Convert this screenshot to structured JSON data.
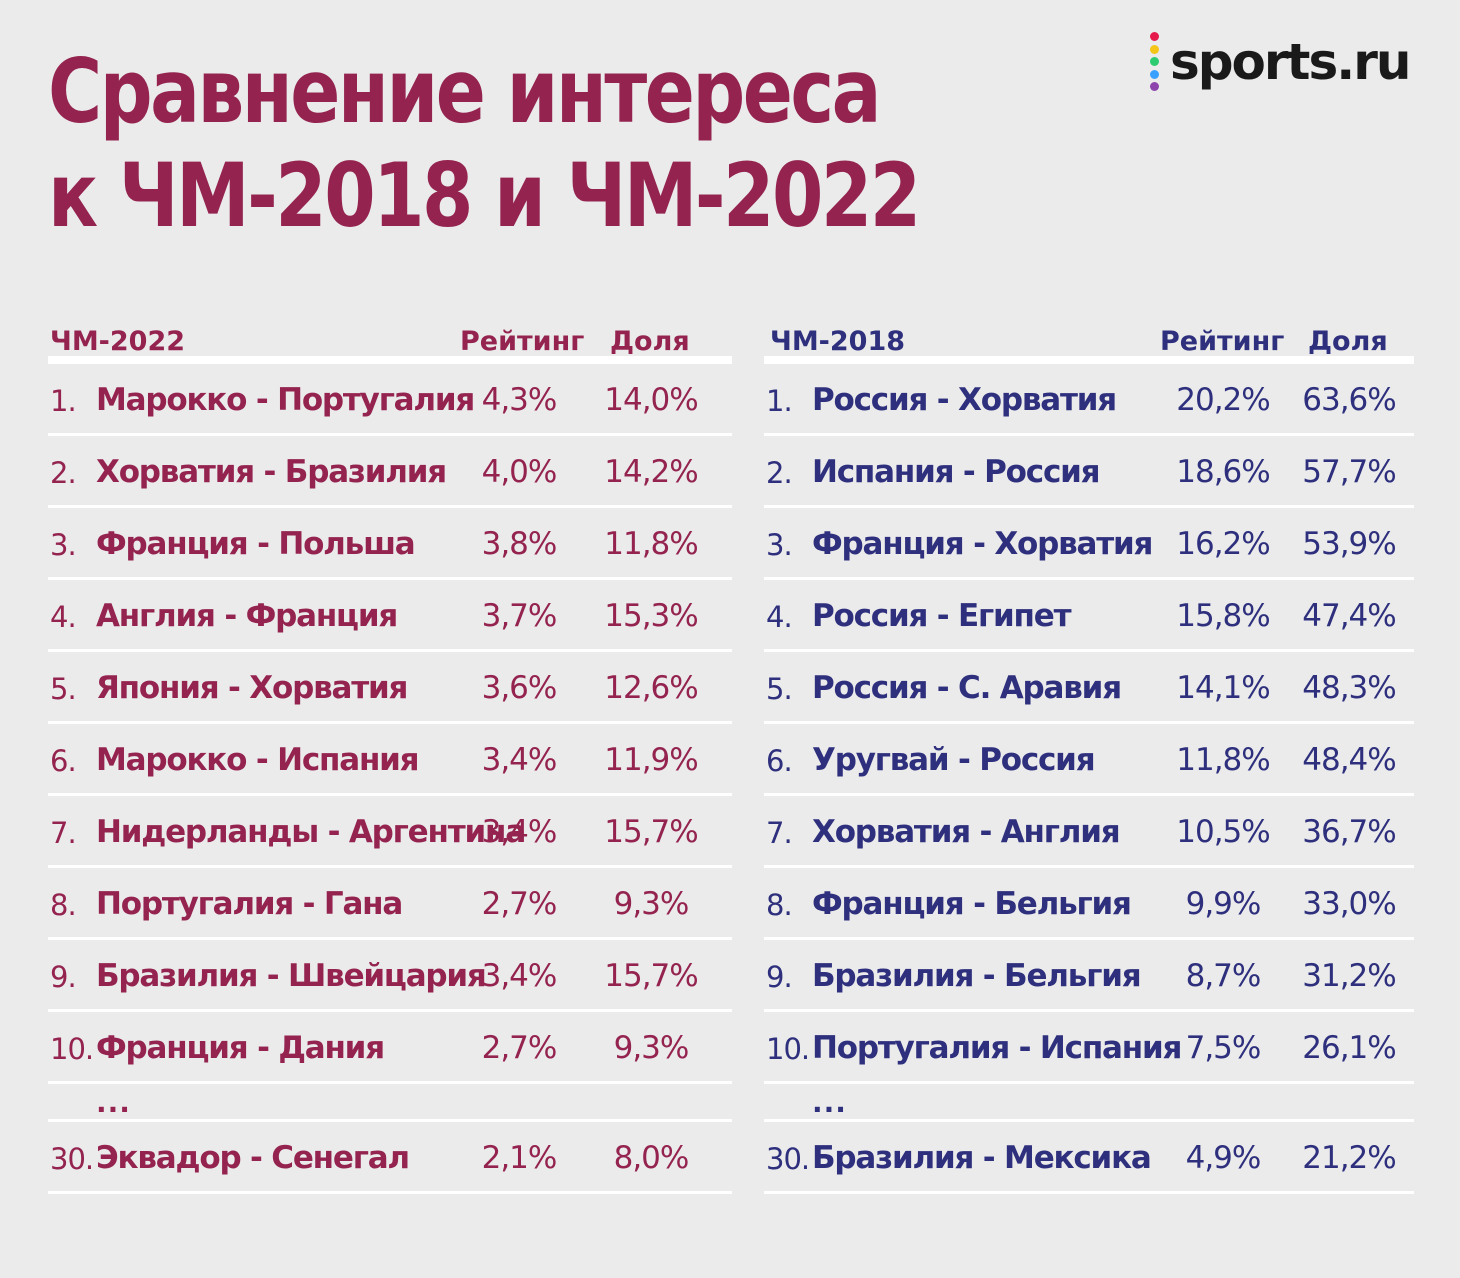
{
  "title_line1": "Сравнение интереса",
  "title_line2": "к ЧМ-2018 и ЧМ-2022",
  "logo": {
    "text": "sports.ru",
    "dot_colors": [
      "#e6194b",
      "#f5c518",
      "#2ecc71",
      "#3aa0ff",
      "#8e44ad"
    ]
  },
  "colors": {
    "wc2022": "#94244f",
    "wc2018": "#2e2f7d",
    "background": "#ebebeb",
    "divider": "#ffffff"
  },
  "ellipsis": "...",
  "chart_data": {
    "type": "table",
    "tables": [
      {
        "title": "ЧМ-2022",
        "columns": [
          "Рейтинг",
          "Доля"
        ],
        "rows": [
          {
            "rank": "1.",
            "match": "Марокко - Португалия",
            "rating": "4,3%",
            "share": "14,0%"
          },
          {
            "rank": "2.",
            "match": "Хорватия - Бразилия",
            "rating": "4,0%",
            "share": "14,2%"
          },
          {
            "rank": "3.",
            "match": "Франция - Польша",
            "rating": "3,8%",
            "share": "11,8%"
          },
          {
            "rank": "4.",
            "match": "Англия - Франция",
            "rating": "3,7%",
            "share": "15,3%"
          },
          {
            "rank": "5.",
            "match": "Япония - Хорватия",
            "rating": "3,6%",
            "share": "12,6%"
          },
          {
            "rank": "6.",
            "match": "Марокко - Испания",
            "rating": "3,4%",
            "share": "11,9%"
          },
          {
            "rank": "7.",
            "match": "Нидерланды - Аргентина",
            "rating": "3,4%",
            "share": "15,7%"
          },
          {
            "rank": "8.",
            "match": "Португалия - Гана",
            "rating": "2,7%",
            "share": "9,3%"
          },
          {
            "rank": "9.",
            "match": "Бразилия - Швейцария",
            "rating": "3,4%",
            "share": "15,7%"
          },
          {
            "rank": "10.",
            "match": "Франция - Дания",
            "rating": "2,7%",
            "share": "9,3%"
          }
        ],
        "last_row": {
          "rank": "30.",
          "match": "Эквадор - Сенегал",
          "rating": "2,1%",
          "share": "8,0%"
        }
      },
      {
        "title": "ЧМ-2018",
        "columns": [
          "Рейтинг",
          "Доля"
        ],
        "rows": [
          {
            "rank": "1.",
            "match": "Россия - Хорватия",
            "rating": "20,2%",
            "share": "63,6%"
          },
          {
            "rank": "2.",
            "match": "Испания - Россия",
            "rating": "18,6%",
            "share": "57,7%"
          },
          {
            "rank": "3.",
            "match": "Франция - Хорватия",
            "rating": "16,2%",
            "share": "53,9%"
          },
          {
            "rank": "4.",
            "match": "Россия - Египет",
            "rating": "15,8%",
            "share": "47,4%"
          },
          {
            "rank": "5.",
            "match": "Россия - С. Аравия",
            "rating": "14,1%",
            "share": "48,3%"
          },
          {
            "rank": "6.",
            "match": "Уругвай - Россия",
            "rating": "11,8%",
            "share": "48,4%"
          },
          {
            "rank": "7.",
            "match": "Хорватия - Англия",
            "rating": "10,5%",
            "share": "36,7%"
          },
          {
            "rank": "8.",
            "match": "Франция - Бельгия",
            "rating": "9,9%",
            "share": "33,0%"
          },
          {
            "rank": "9.",
            "match": "Бразилия - Бельгия",
            "rating": "8,7%",
            "share": "31,2%"
          },
          {
            "rank": "10.",
            "match": "Португалия - Испания",
            "rating": "7,5%",
            "share": "26,1%"
          }
        ],
        "last_row": {
          "rank": "30.",
          "match": "Бразилия - Мексика",
          "rating": "4,9%",
          "share": "21,2%"
        }
      }
    ]
  }
}
